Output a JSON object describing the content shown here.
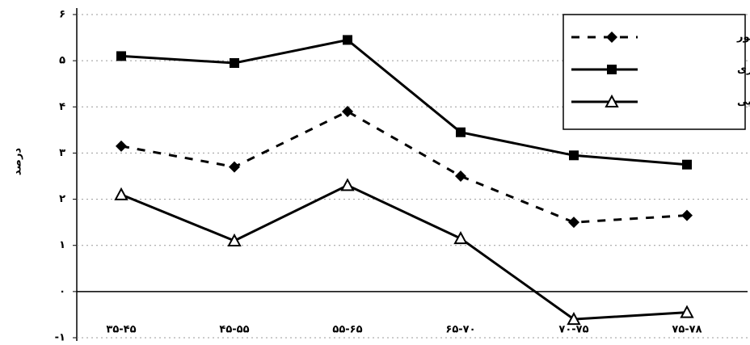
{
  "chart_data": {
    "type": "line",
    "y_label": "درصد",
    "categories": [
      "۳۵-۴۵",
      "۴۵-۵۵",
      "۵۵-۶۵",
      "۶۵-۷۰",
      "۷۰-۷۵",
      "۷۵-۷۸"
    ],
    "series": [
      {
        "name": "کل کشور",
        "color": "#000000",
        "dashed": true,
        "marker": "diamond",
        "values": [
          3.15,
          2.7,
          3.9,
          2.5,
          1.5,
          1.65
        ]
      },
      {
        "name": "شهری",
        "color": "#000000",
        "dashed": false,
        "marker": "square",
        "values": [
          5.1,
          4.95,
          5.45,
          3.45,
          2.95,
          2.75
        ]
      },
      {
        "name": "روستایی",
        "color": "#000000",
        "dashed": false,
        "marker": "triangle",
        "values": [
          2.1,
          1.1,
          2.3,
          1.15,
          -0.6,
          -0.45
        ]
      }
    ],
    "ylim": [
      -1,
      6
    ],
    "yticks": [
      {
        "value": -1,
        "label": "-۱"
      },
      {
        "value": 0,
        "label": "۰"
      },
      {
        "value": 1,
        "label": "۱"
      },
      {
        "value": 2,
        "label": "۲"
      },
      {
        "value": 3,
        "label": "۳"
      },
      {
        "value": 4,
        "label": "۴"
      },
      {
        "value": 5,
        "label": "۵"
      },
      {
        "value": 6,
        "label": "۶"
      }
    ],
    "grid": true,
    "legend": "top-right"
  }
}
